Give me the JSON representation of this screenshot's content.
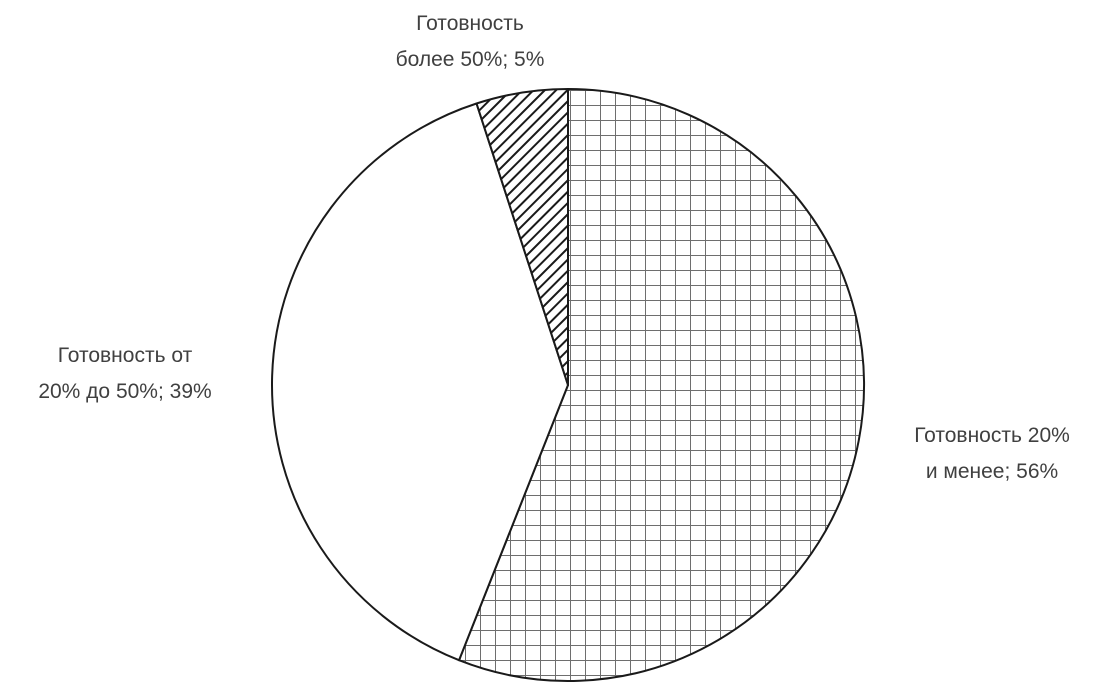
{
  "chart_data": {
    "type": "pie",
    "title": "",
    "start_angle_deg": 0,
    "direction": "clockwise",
    "slices": [
      {
        "label_lines": [
          "Готовность 20%",
          "и менее; 56%"
        ],
        "value": 56,
        "pattern": "grid",
        "label_pos": "right"
      },
      {
        "label_lines": [
          "Готовность от",
          "20% до 50%; 39%"
        ],
        "value": 39,
        "pattern": "none",
        "label_pos": "left"
      },
      {
        "label_lines": [
          "Готовность",
          "более 50%; 5%"
        ],
        "value": 5,
        "pattern": "diagonal",
        "label_pos": "top"
      }
    ],
    "colors": {
      "stroke": "#1a1a1a",
      "fill": "#ffffff",
      "pattern": "#6e6e6e",
      "hatch": "#1a1a1a",
      "text": "#404040"
    }
  }
}
